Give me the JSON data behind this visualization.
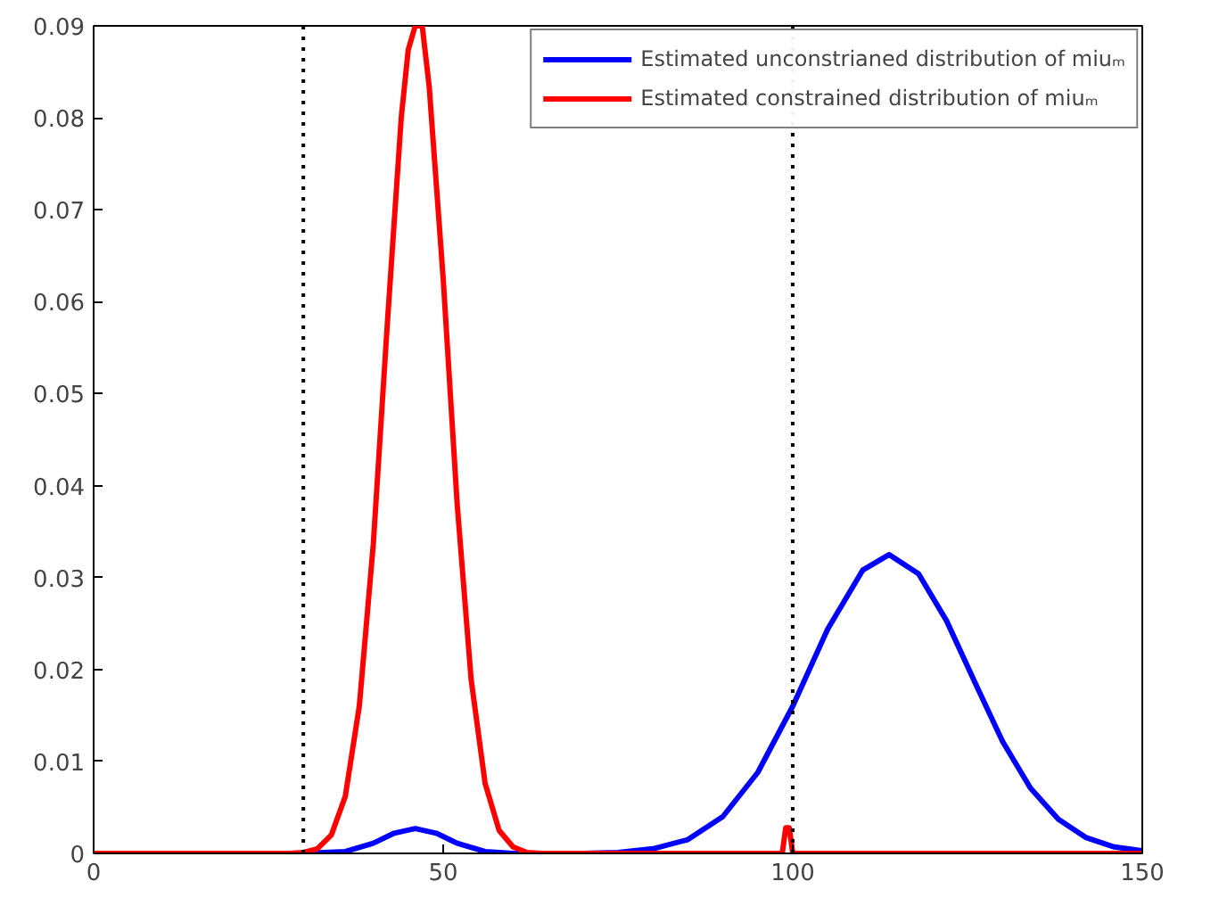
{
  "chart_data": {
    "type": "line",
    "series": [
      {
        "name": "Estimated unconstrianed distribution of miuₘ",
        "color": "#0000ff",
        "x": [
          0,
          30,
          36,
          40,
          43,
          46,
          49,
          52,
          56,
          60,
          70,
          75,
          80,
          85,
          90,
          95,
          100,
          105,
          110,
          113.8,
          118,
          122,
          126,
          130,
          134,
          138,
          142,
          146,
          150
        ],
        "values": [
          0,
          0,
          0.0002,
          0.0011,
          0.0022,
          0.0027,
          0.0022,
          0.0011,
          0.0002,
          0,
          0,
          0.0001,
          0.0005,
          0.0015,
          0.004,
          0.0088,
          0.016,
          0.0244,
          0.0308,
          0.0325,
          0.0304,
          0.0253,
          0.0187,
          0.0122,
          0.0071,
          0.0037,
          0.0017,
          0.0007,
          0.0003
        ]
      },
      {
        "name": "Estimated constrained distribution of miuₘ",
        "color": "#ff0000",
        "x": [
          0,
          28,
          30,
          32,
          34,
          36,
          38,
          40,
          42,
          44,
          45,
          46,
          47,
          48,
          50,
          52,
          54,
          56,
          58,
          60,
          62,
          64,
          98,
          98.5,
          99,
          99.5,
          100,
          150
        ],
        "values": [
          0,
          0,
          0.0001,
          0.0005,
          0.002,
          0.0062,
          0.016,
          0.0336,
          0.0575,
          0.08,
          0.0874,
          0.09,
          0.09,
          0.0834,
          0.0625,
          0.038,
          0.0189,
          0.0076,
          0.0025,
          0.0007,
          0.0001,
          0,
          0,
          0,
          0.0028,
          0.0028,
          0,
          0
        ]
      }
    ],
    "xlim": [
      0,
      150
    ],
    "xticks": [
      0,
      50,
      100,
      150
    ],
    "ylim": [
      0,
      0.09
    ],
    "yticks": [
      0,
      0.01,
      0.02,
      0.03,
      0.04,
      0.05,
      0.06,
      0.07,
      0.08,
      0.09
    ],
    "ref_lines": [
      {
        "axis": "x",
        "value": 30,
        "label": null,
        "color": "#000000",
        "line_style": "dotted"
      },
      {
        "axis": "x",
        "value": 100,
        "label": null,
        "color": "#000000",
        "line_style": "dotted"
      }
    ],
    "legend": "top right",
    "grid": false,
    "marker": "none",
    "line_style": "solid"
  }
}
